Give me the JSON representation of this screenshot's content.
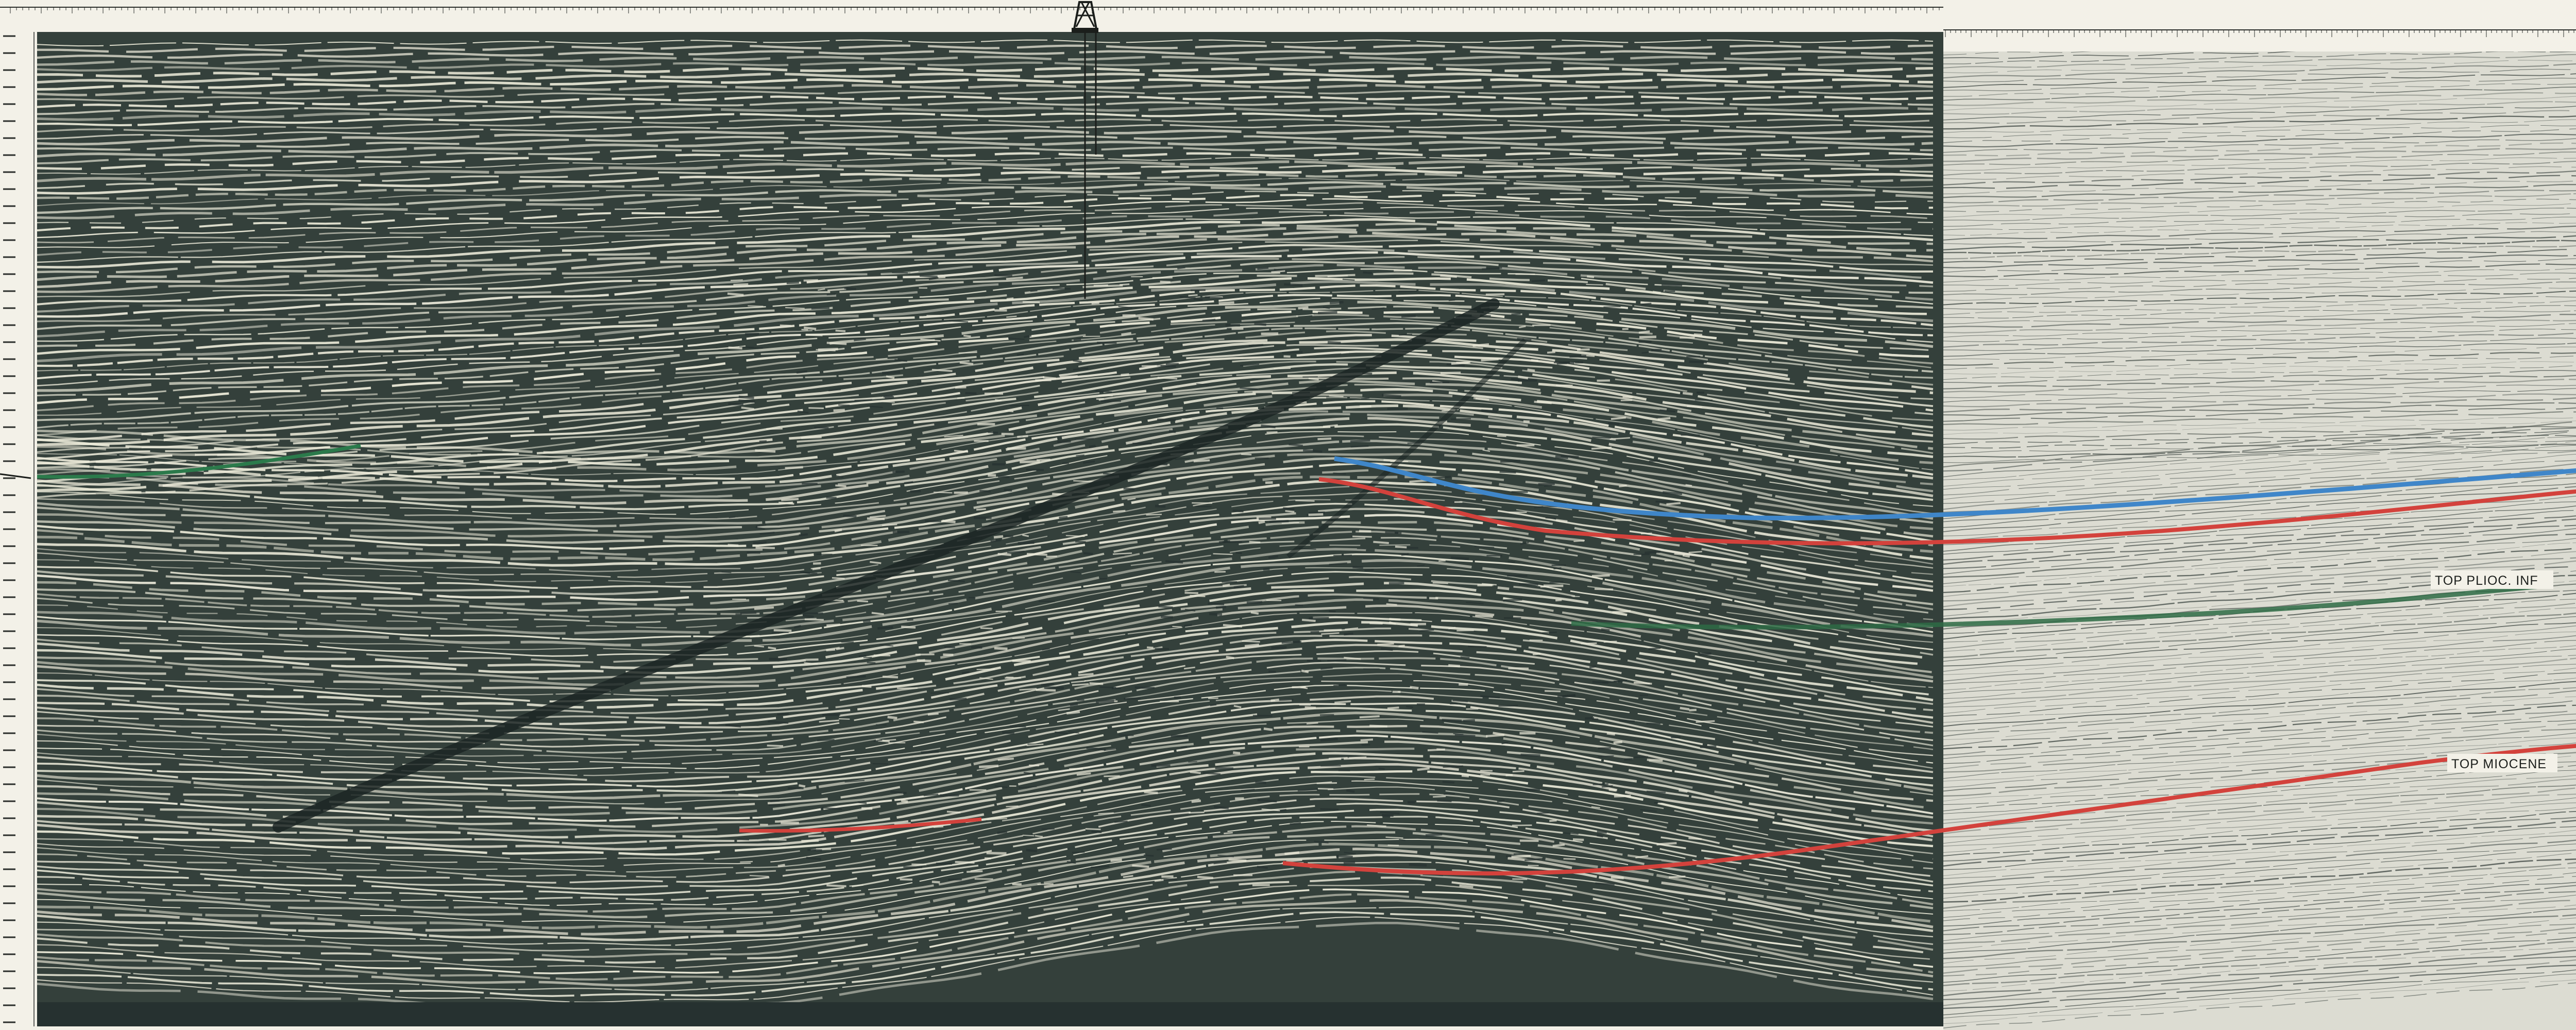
{
  "horizons": [
    {
      "label": "TOP PLIOC. INF",
      "color": "#2e6b45"
    },
    {
      "label": "TOP MIOCENE",
      "color": "#d3423c"
    }
  ],
  "unlabeled_horizon_colors": {
    "blue": "#3f86c9",
    "red_upper": "#d3423c",
    "green_left": "#2b7a4b"
  },
  "palette": {
    "paper": "#f3f1e8",
    "ink": "#34403b",
    "ink_dark": "#263130"
  },
  "icons": {
    "well": "drilling-rig-icon"
  }
}
